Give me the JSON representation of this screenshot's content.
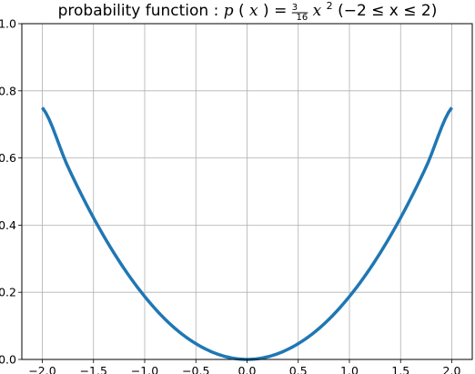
{
  "chart_data": {
    "type": "line",
    "title_prefix": "probability function : ",
    "title_math": {
      "fn": "p",
      "var": "x",
      "frac_num": "3",
      "frac_den": "16",
      "pow_base": "x",
      "pow_exp": "2",
      "domain": "(−2 ≤ x ≤ 2)"
    },
    "xlabel": "",
    "ylabel": "",
    "xlim": [
      -2.2,
      2.2
    ],
    "ylim": [
      0.0,
      1.0
    ],
    "grid": true,
    "xticks": [
      -2.0,
      -1.5,
      -1.0,
      -0.5,
      0.0,
      0.5,
      1.0,
      1.5,
      2.0
    ],
    "xtick_labels": [
      "−2.0",
      "−1.5",
      "−1.0",
      "−0.5",
      "0.0",
      "0.5",
      "1.0",
      "1.5",
      "2.0"
    ],
    "yticks": [
      0.0,
      0.2,
      0.4,
      0.6,
      0.8,
      1.0
    ],
    "ytick_labels": [
      "0.0",
      "0.2",
      "0.4",
      "0.6",
      "0.8",
      "1.0"
    ],
    "series": [
      {
        "color": "#1f77b4",
        "x": [
          -2.0,
          -1.75,
          -1.5,
          -1.25,
          -1.0,
          -0.75,
          -0.5,
          -0.25,
          0.0,
          0.25,
          0.5,
          0.75,
          1.0,
          1.25,
          1.5,
          1.75,
          2.0
        ],
        "y": [
          0.75,
          0.574,
          0.422,
          0.293,
          0.1875,
          0.105,
          0.047,
          0.012,
          0.0,
          0.012,
          0.047,
          0.105,
          0.1875,
          0.293,
          0.422,
          0.574,
          0.75
        ]
      }
    ]
  }
}
